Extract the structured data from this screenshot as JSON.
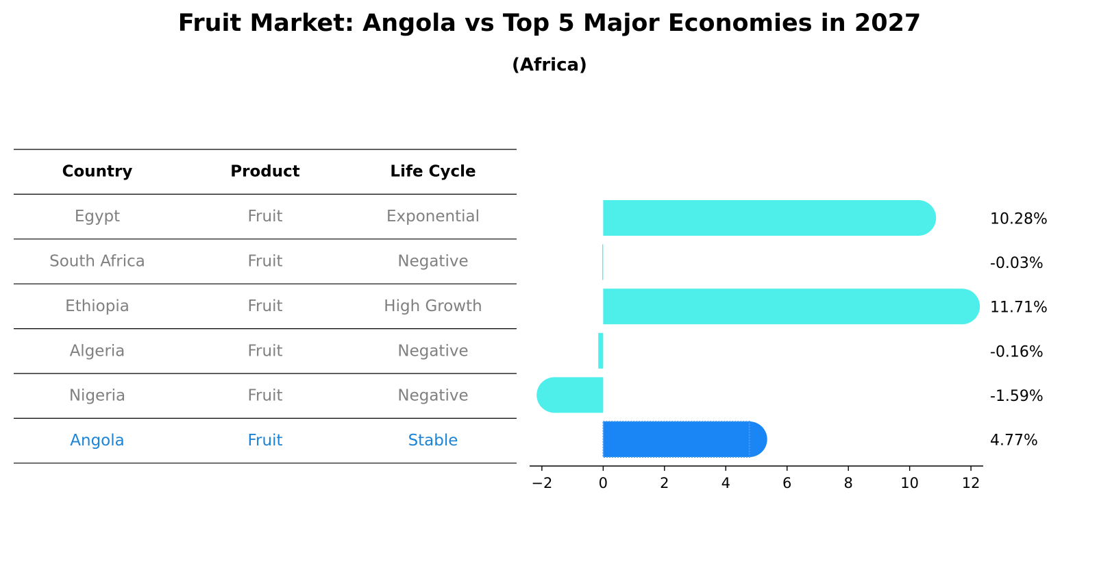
{
  "header": {
    "title": "Fruit Market: Angola vs Top 5 Major Economies in 2027",
    "subtitle": "(Africa)"
  },
  "colors": {
    "other_bar": "#4eeeea",
    "highlight": "#1a86f5",
    "muted_text": "#808080",
    "highlight_text": "#1c84d6"
  },
  "table": {
    "columns": [
      "Country",
      "Product",
      "Life Cycle"
    ],
    "rows": [
      {
        "country": "Egypt",
        "product": "Fruit",
        "life_cycle": "Exponential",
        "highlight": false
      },
      {
        "country": "South Africa",
        "product": "Fruit",
        "life_cycle": "Negative",
        "highlight": false
      },
      {
        "country": "Ethiopia",
        "product": "Fruit",
        "life_cycle": "High Growth",
        "highlight": false
      },
      {
        "country": "Algeria",
        "product": "Fruit",
        "life_cycle": "Negative",
        "highlight": false
      },
      {
        "country": "Nigeria",
        "product": "Fruit",
        "life_cycle": "Negative",
        "highlight": false
      },
      {
        "country": "Angola",
        "product": "Fruit",
        "life_cycle": "Stable",
        "highlight": true
      }
    ]
  },
  "chart_data": {
    "type": "bar",
    "orientation": "horizontal",
    "categories": [
      "Egypt",
      "South Africa",
      "Ethiopia",
      "Algeria",
      "Nigeria",
      "Angola"
    ],
    "values": [
      10.28,
      -0.03,
      11.71,
      -0.16,
      -1.59,
      4.77
    ],
    "value_labels": [
      "10.28%",
      "-0.03%",
      "11.71%",
      "-0.16%",
      "-1.59%",
      "4.77%"
    ],
    "highlight_category": "Angola",
    "xlim": [
      -2.4,
      12.4
    ],
    "xticks": [
      -2,
      0,
      2,
      4,
      6,
      8,
      10,
      12
    ],
    "xtick_labels": [
      "−2",
      "0",
      "2",
      "4",
      "6",
      "8",
      "10",
      "12"
    ],
    "title": "",
    "xlabel": "",
    "ylabel": "",
    "grid": false
  }
}
